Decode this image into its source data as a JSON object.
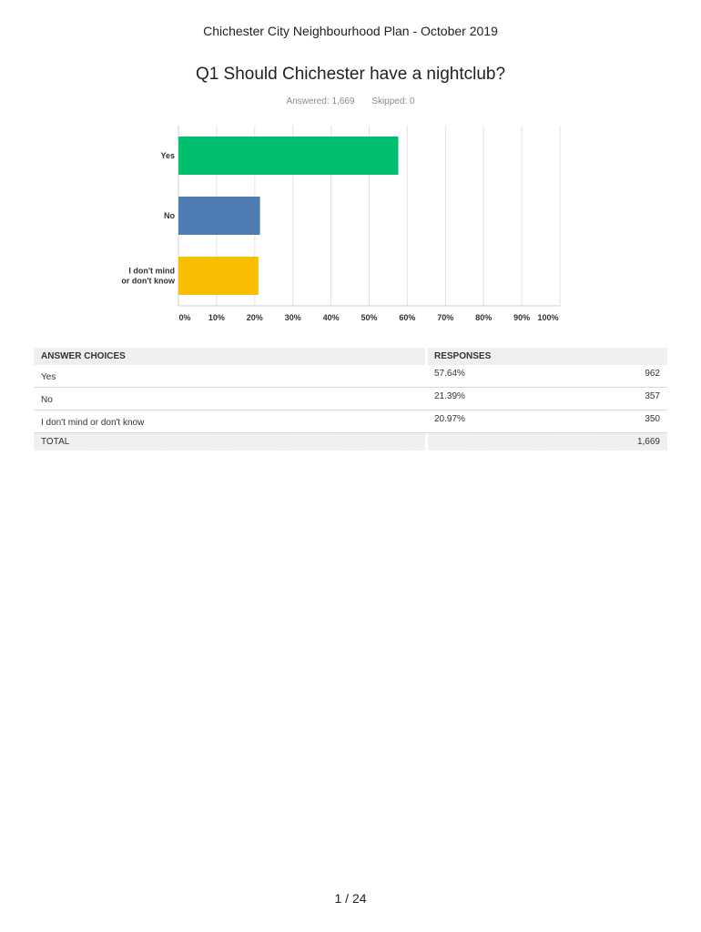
{
  "document": {
    "header": "Chichester City Neighbourhood Plan - October 2019",
    "page_number": "1 / 24"
  },
  "question": {
    "title": "Q1 Should Chichester have a nightclub?",
    "answered": "Answered: 1,669",
    "skipped": "Skipped: 0"
  },
  "chart_data": {
    "type": "bar",
    "orientation": "horizontal",
    "categories": [
      "Yes",
      "No",
      "I don't mind or don't know"
    ],
    "category_lines": [
      [
        "Yes"
      ],
      [
        "No"
      ],
      [
        "I don't mind",
        "or don't know"
      ]
    ],
    "values": [
      57.64,
      21.39,
      20.97
    ],
    "colors": [
      "#00bf6f",
      "#507cb6",
      "#f9be00"
    ],
    "xlim": [
      0,
      100
    ],
    "x_ticks": [
      "0%",
      "10%",
      "20%",
      "30%",
      "40%",
      "50%",
      "60%",
      "70%",
      "80%",
      "90%",
      "100%"
    ],
    "grid": true
  },
  "table": {
    "headers": [
      "ANSWER CHOICES",
      "RESPONSES"
    ],
    "rows": [
      {
        "choice": "Yes",
        "percent": "57.64%",
        "count": "962"
      },
      {
        "choice": "No",
        "percent": "21.39%",
        "count": "357"
      },
      {
        "choice": "I don't mind or don't know",
        "percent": "20.97%",
        "count": "350"
      }
    ],
    "total_label": "TOTAL",
    "total_count": "1,669"
  }
}
